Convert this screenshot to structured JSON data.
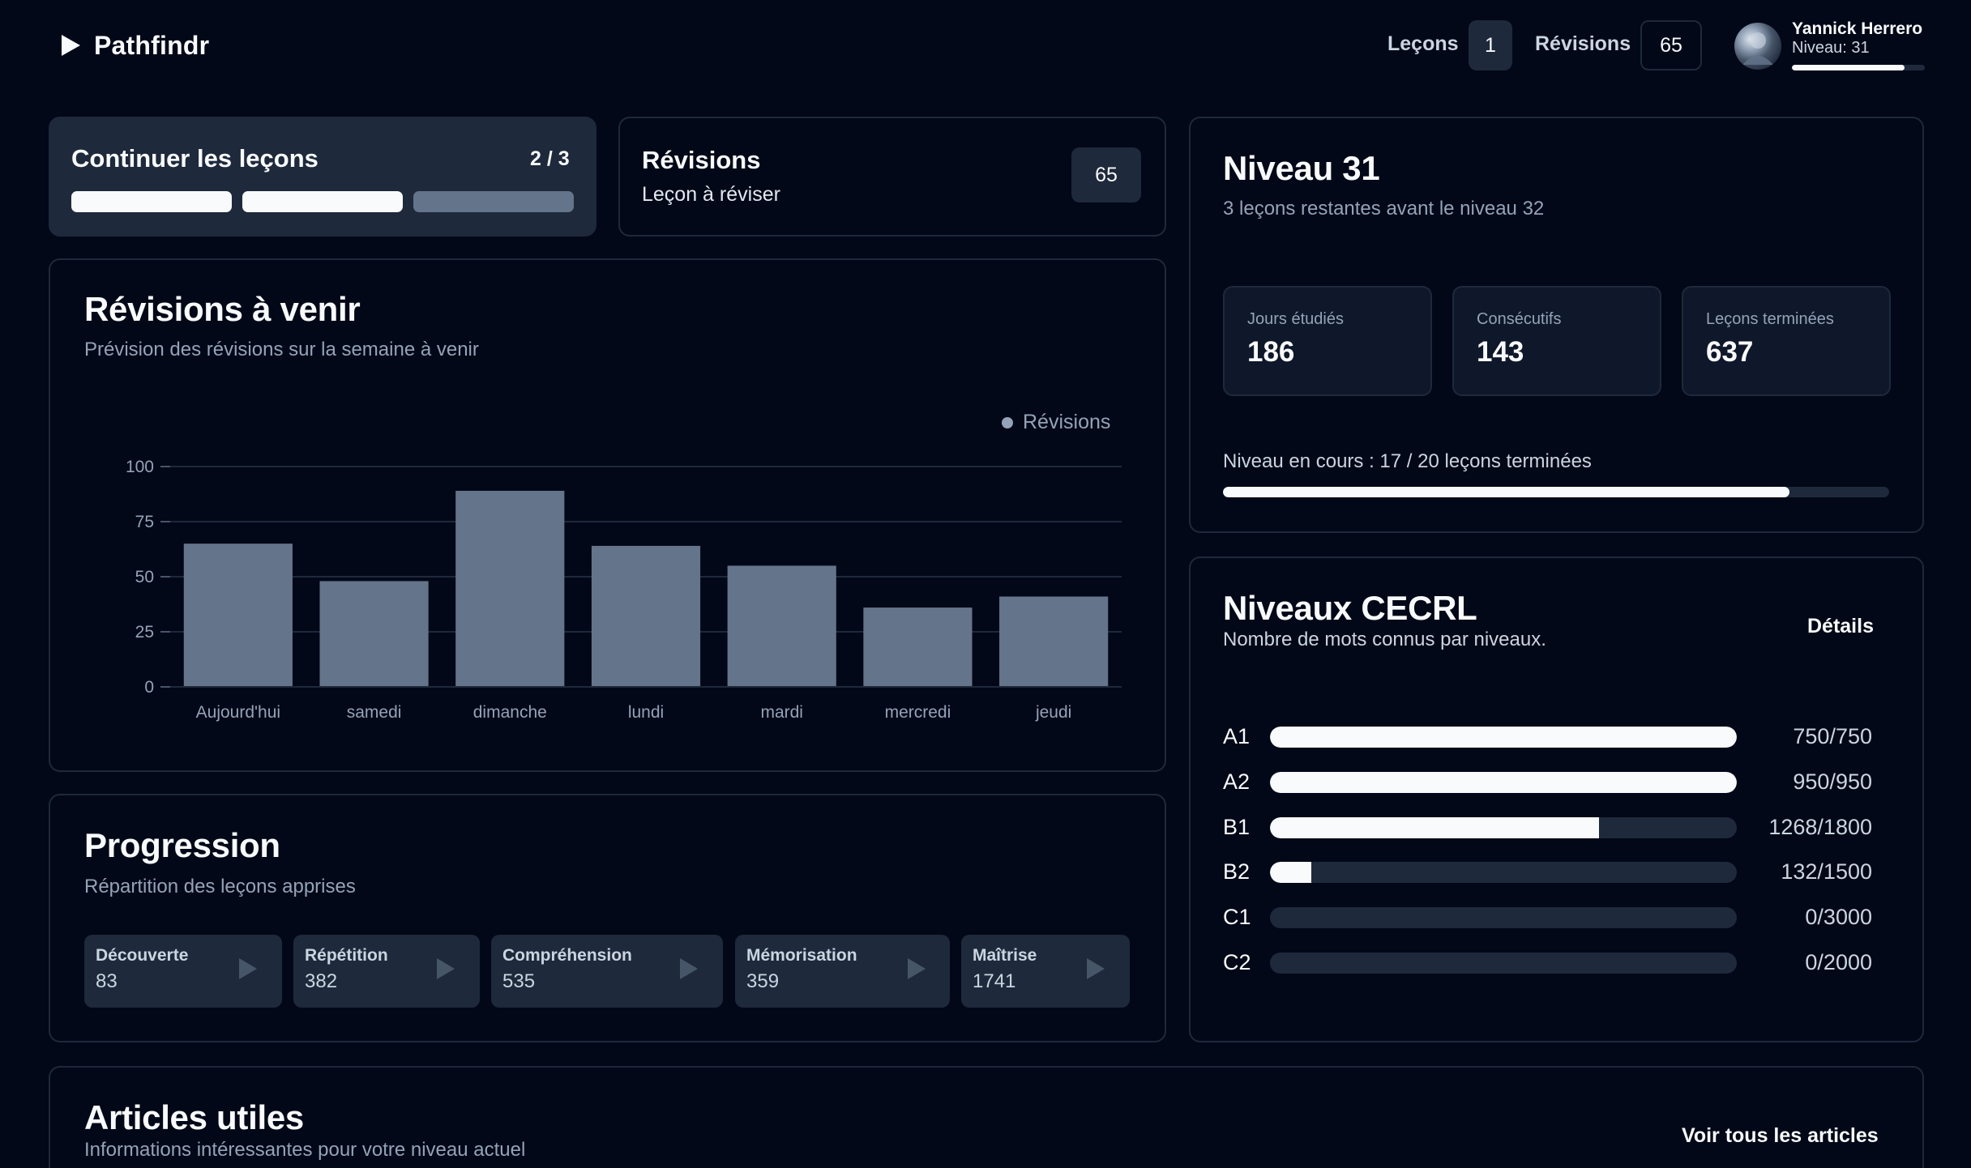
{
  "app": {
    "name": "Pathfindr"
  },
  "header": {
    "lessons_label": "Leçons",
    "lessons_count": "1",
    "reviews_label": "Révisions",
    "reviews_count": "65",
    "user_name": "Yannick Herrero",
    "user_level": "Niveau: 31",
    "user_level_progress": 0.85
  },
  "continue_card": {
    "title": "Continuer les leçons",
    "count": "2 / 3",
    "segments": [
      true,
      true,
      false
    ]
  },
  "reviews_card": {
    "title": "Révisions",
    "subtitle": "Leçon à réviser",
    "count": "65"
  },
  "upcoming": {
    "title": "Révisions à venir",
    "subtitle": "Prévision des révisions sur la semaine à venir",
    "legend": "Révisions"
  },
  "chart_data": {
    "type": "bar",
    "categories": [
      "Aujourd'hui",
      "samedi",
      "dimanche",
      "lundi",
      "mardi",
      "mercredi",
      "jeudi"
    ],
    "series": [
      {
        "name": "Révisions",
        "values": [
          65,
          48,
          89,
          64,
          55,
          36,
          41
        ]
      }
    ],
    "yticks": [
      "0",
      "25",
      "50",
      "75",
      "100"
    ],
    "ylim": [
      0,
      100
    ],
    "grid": true,
    "legend_position": "top-right",
    "bar_color": "#64748b"
  },
  "progression": {
    "title": "Progression",
    "subtitle": "Répartition des leçons apprises",
    "stages": [
      {
        "name": "Découverte",
        "value": "83"
      },
      {
        "name": "Répétition",
        "value": "382"
      },
      {
        "name": "Compréhension",
        "value": "535"
      },
      {
        "name": "Mémorisation",
        "value": "359"
      },
      {
        "name": "Maîtrise",
        "value": "1741"
      }
    ]
  },
  "level": {
    "title": "Niveau 31",
    "subtitle": "3 leçons restantes avant le niveau 32",
    "stats": [
      {
        "label": "Jours étudiés",
        "value": "186"
      },
      {
        "label": "Consécutifs",
        "value": "143"
      },
      {
        "label": "Leçons terminées",
        "value": "637"
      }
    ],
    "progress_label": "Niveau en cours : 17 / 20 leçons terminées",
    "progress": 0.85
  },
  "cecrl": {
    "title": "Niveaux CECRL",
    "subtitle": "Nombre de mots connus par niveaux.",
    "details_label": "Détails",
    "levels": [
      {
        "label": "A1",
        "value": "750/750",
        "known": 750,
        "total": 750
      },
      {
        "label": "A2",
        "value": "950/950",
        "known": 950,
        "total": 950
      },
      {
        "label": "B1",
        "value": "1268/1800",
        "known": 1268,
        "total": 1800
      },
      {
        "label": "B2",
        "value": "132/1500",
        "known": 132,
        "total": 1500
      },
      {
        "label": "C1",
        "value": "0/3000",
        "known": 0,
        "total": 3000
      },
      {
        "label": "C2",
        "value": "0/2000",
        "known": 0,
        "total": 2000
      }
    ]
  },
  "articles": {
    "title": "Articles utiles",
    "subtitle": "Informations intéressantes pour votre niveau actuel",
    "see_all_label": "Voir tous les articles"
  },
  "colors": {
    "background": "#020817",
    "card_border": "#1e293b",
    "bar": "#64748b",
    "accent": "#f8fafc"
  }
}
